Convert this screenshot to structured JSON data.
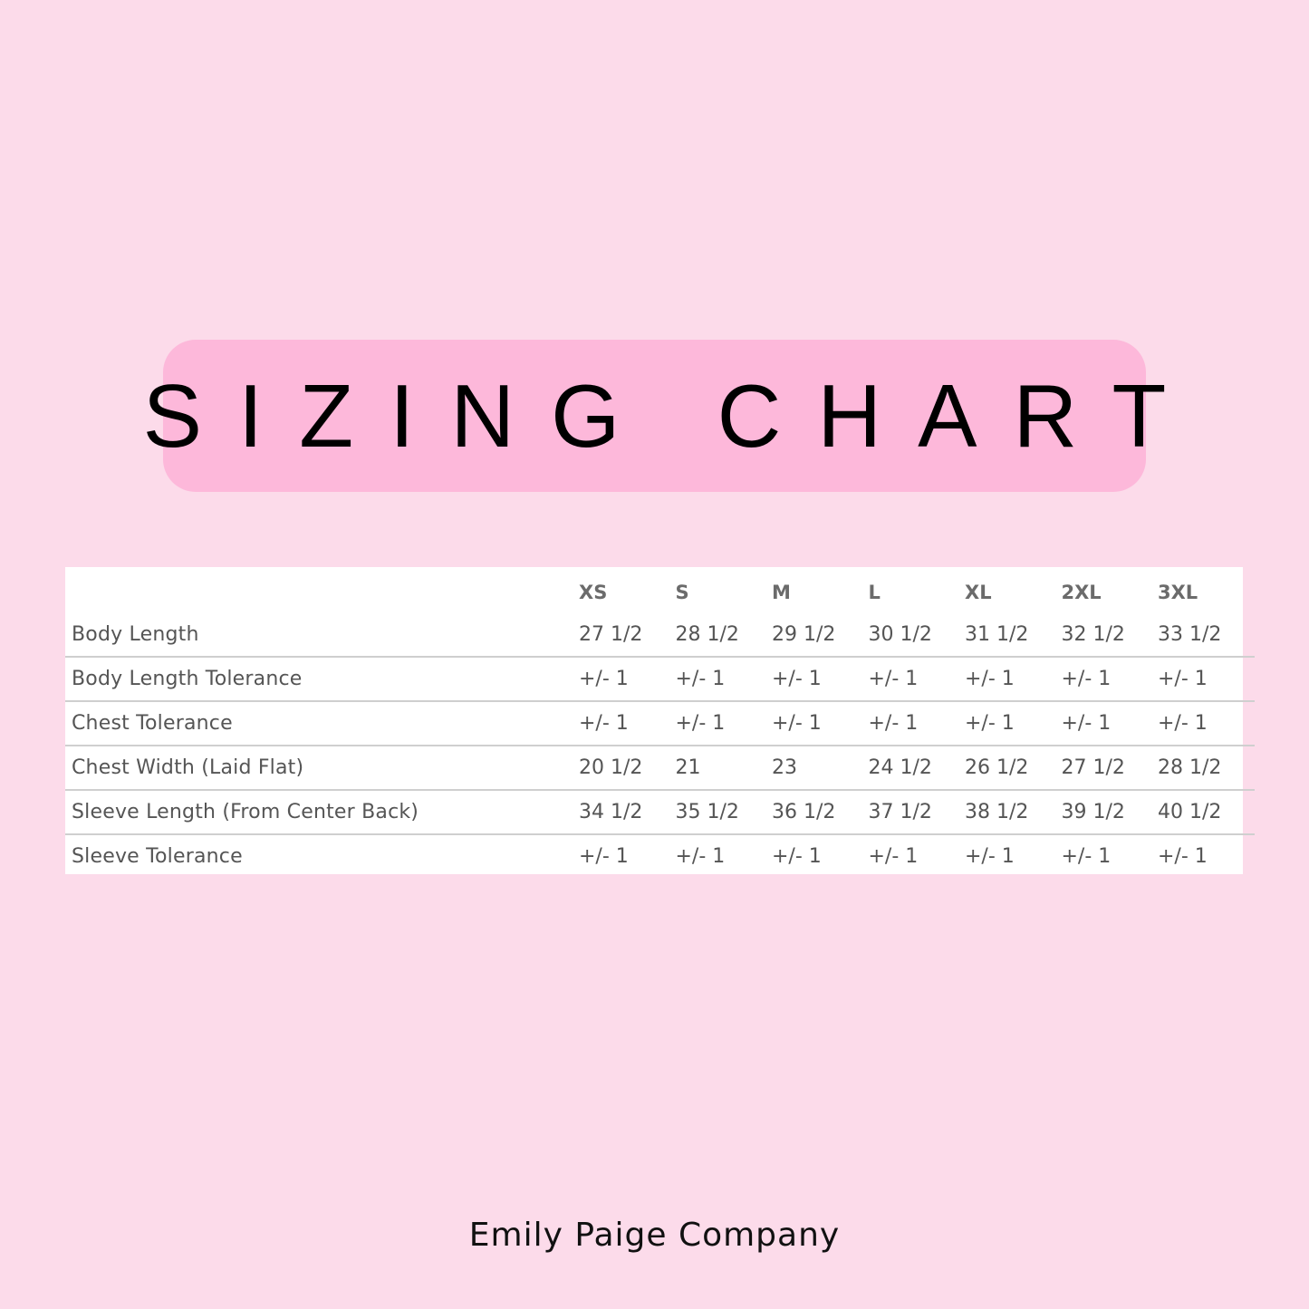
{
  "title": "SIZING CHART",
  "colors": {
    "background": "#fcdbea",
    "banner": "#fdb8da",
    "table_bg": "#ffffff",
    "text": "#555555"
  },
  "table": {
    "columns": [
      "",
      "XS",
      "S",
      "M",
      "L",
      "XL",
      "2XL",
      "3XL"
    ],
    "rows": [
      {
        "label": "Body Length",
        "values": [
          "27 1/2",
          "28 1/2",
          "29 1/2",
          "30 1/2",
          "31 1/2",
          "32 1/2",
          "33 1/2"
        ]
      },
      {
        "label": "Body Length Tolerance",
        "values": [
          "+/- 1",
          "+/- 1",
          "+/- 1",
          "+/- 1",
          "+/- 1",
          "+/- 1",
          "+/- 1"
        ]
      },
      {
        "label": "Chest Tolerance",
        "values": [
          "+/- 1",
          "+/- 1",
          "+/- 1",
          "+/- 1",
          "+/- 1",
          "+/- 1",
          "+/- 1"
        ]
      },
      {
        "label": "Chest Width (Laid Flat)",
        "values": [
          "20 1/2",
          "21",
          "23",
          "24 1/2",
          "26 1/2",
          "27 1/2",
          "28 1/2"
        ]
      },
      {
        "label": "Sleeve Length (From Center Back)",
        "values": [
          "34 1/2",
          "35 1/2",
          "36 1/2",
          "37 1/2",
          "38 1/2",
          "39 1/2",
          "40 1/2"
        ]
      },
      {
        "label": "Sleeve Tolerance",
        "values": [
          "+/- 1",
          "+/- 1",
          "+/- 1",
          "+/- 1",
          "+/- 1",
          "+/- 1",
          "+/- 1"
        ]
      }
    ]
  },
  "footer": "Emily Paige Company"
}
